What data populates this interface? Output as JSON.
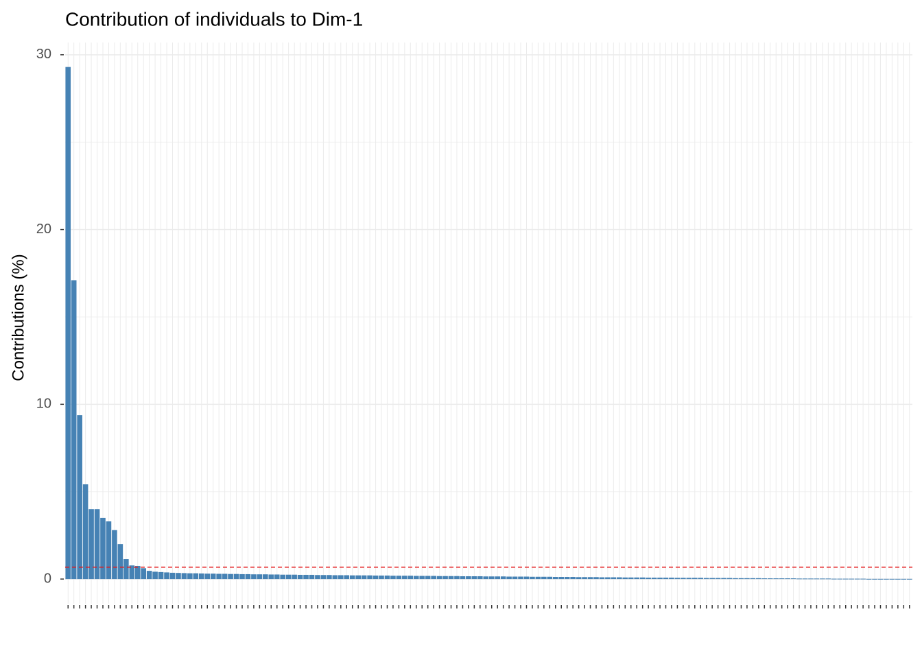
{
  "chart_data": {
    "type": "bar",
    "title": "Contribution of individuals to Dim-1",
    "y_label": "Contributions (%)",
    "categories": [
      null,
      null,
      null,
      null,
      null,
      null,
      null,
      null,
      null,
      null,
      null,
      null,
      null,
      null,
      null,
      null,
      null,
      null,
      null,
      null,
      null,
      null,
      null,
      null,
      null,
      null,
      null,
      null,
      null,
      null,
      null,
      null,
      null,
      null,
      null,
      null,
      null,
      null,
      null,
      null,
      null,
      null,
      null,
      null,
      null,
      null,
      null,
      null,
      null,
      null,
      null,
      null,
      null,
      null,
      null,
      null,
      null,
      null,
      null,
      null,
      null,
      null,
      null,
      null,
      null,
      null,
      null,
      null,
      null,
      null,
      null,
      null,
      null,
      null,
      null,
      null,
      null,
      null,
      null,
      null,
      null,
      null,
      null,
      null,
      null,
      null,
      null,
      null,
      null,
      null,
      null,
      null,
      null,
      null,
      null,
      null,
      null,
      null,
      null,
      null,
      null,
      null,
      null,
      null,
      null,
      null,
      null,
      null,
      null,
      null,
      null,
      null,
      null,
      null,
      null,
      null,
      null,
      null,
      null,
      null,
      null,
      null,
      null,
      null,
      null,
      null,
      null,
      null,
      null,
      null,
      null,
      null,
      null,
      null,
      null,
      null,
      null,
      null,
      null,
      null,
      null,
      null,
      null,
      null,
      null,
      null
    ],
    "values": [
      29.3,
      17.1,
      9.38,
      5.42,
      4.0,
      4.0,
      3.5,
      3.3,
      2.8,
      2.0,
      1.14,
      0.78,
      0.75,
      0.62,
      0.47,
      0.42,
      0.4,
      0.38,
      0.36,
      0.35,
      0.34,
      0.33,
      0.33,
      0.32,
      0.31,
      0.31,
      0.3,
      0.3,
      0.29,
      0.29,
      0.28,
      0.28,
      0.27,
      0.27,
      0.27,
      0.26,
      0.26,
      0.25,
      0.25,
      0.25,
      0.24,
      0.24,
      0.24,
      0.23,
      0.23,
      0.23,
      0.22,
      0.22,
      0.22,
      0.21,
      0.21,
      0.21,
      0.21,
      0.2,
      0.2,
      0.2,
      0.19,
      0.19,
      0.19,
      0.19,
      0.18,
      0.18,
      0.18,
      0.18,
      0.17,
      0.17,
      0.17,
      0.17,
      0.16,
      0.16,
      0.16,
      0.16,
      0.15,
      0.15,
      0.15,
      0.15,
      0.14,
      0.14,
      0.14,
      0.14,
      0.13,
      0.13,
      0.13,
      0.13,
      0.12,
      0.12,
      0.12,
      0.12,
      0.11,
      0.11,
      0.11,
      0.11,
      0.1,
      0.1,
      0.1,
      0.1,
      0.09,
      0.09,
      0.09,
      0.09,
      0.08,
      0.08,
      0.08,
      0.08,
      0.08,
      0.07,
      0.07,
      0.07,
      0.07,
      0.07,
      0.06,
      0.06,
      0.06,
      0.06,
      0.06,
      0.05,
      0.05,
      0.05,
      0.05,
      0.05,
      0.04,
      0.04,
      0.04,
      0.04,
      0.04,
      0.04,
      0.03,
      0.03,
      0.03,
      0.03,
      0.03,
      0.03,
      0.02,
      0.02,
      0.02,
      0.02,
      0.02,
      0.02,
      0.01,
      0.01,
      0.01,
      0.01,
      0.01,
      0.01,
      0.01,
      0.01
    ],
    "color": "#4682b4",
    "reference_line": {
      "value": 0.68,
      "color": "#e41a1c"
    },
    "ylim": [
      -1.41,
      30.7
    ],
    "yticks": [
      0,
      10,
      20,
      30
    ],
    "minor_yticks": [
      5,
      15,
      25
    ],
    "grid": true
  }
}
